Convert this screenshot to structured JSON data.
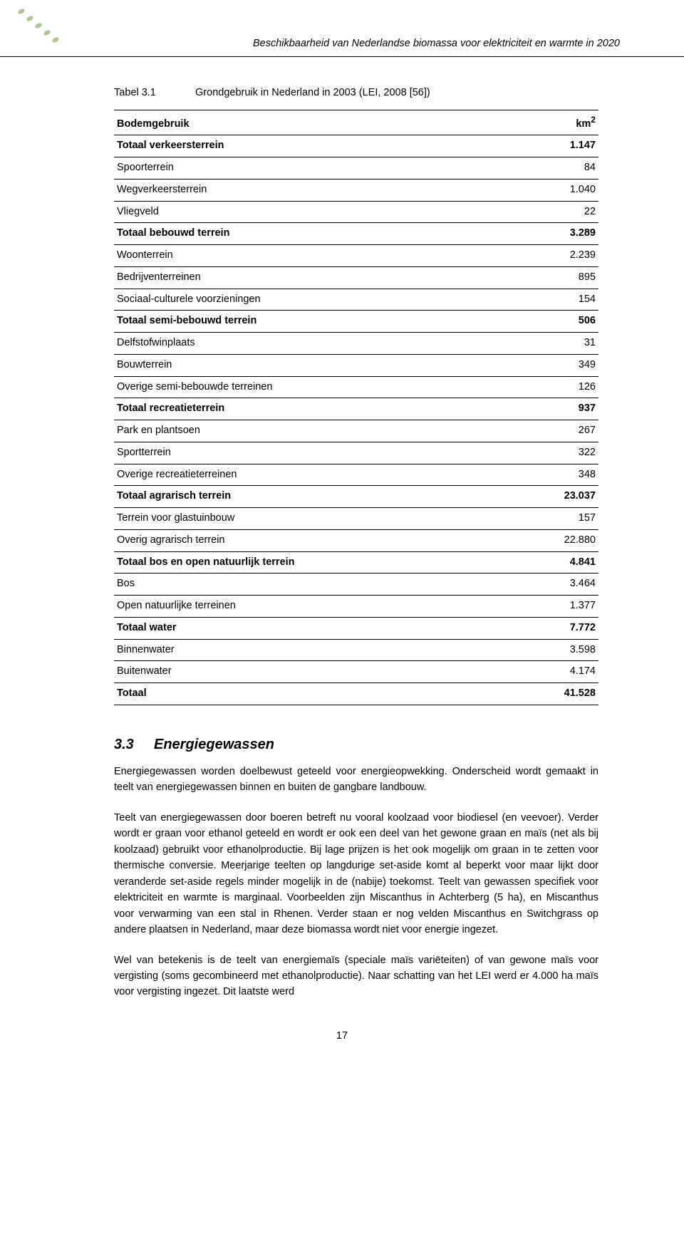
{
  "header": {
    "running_title": "Beschikbaarheid van Nederlandse biomassa voor elektriciteit en warmte in 2020",
    "deco_color": "#6a9a3a",
    "rule_color": "#000000"
  },
  "table": {
    "caption_label": "Tabel 3.1",
    "caption_text": "Grondgebruik in Nederland in 2003 (LEI, 2008 [56])",
    "header_row": {
      "label": "Bodemgebruik",
      "value": "km",
      "value_sup": "2"
    },
    "rows": [
      {
        "label": "Totaal verkeersterrein",
        "value": "1.147",
        "bold": true
      },
      {
        "label": "Spoorterrein",
        "value": "84",
        "bold": false
      },
      {
        "label": "Wegverkeersterrein",
        "value": "1.040",
        "bold": false
      },
      {
        "label": "Vliegveld",
        "value": "22",
        "bold": false
      },
      {
        "label": "Totaal bebouwd terrein",
        "value": "3.289",
        "bold": true
      },
      {
        "label": "Woonterrein",
        "value": "2.239",
        "bold": false
      },
      {
        "label": "Bedrijventerreinen",
        "value": "895",
        "bold": false
      },
      {
        "label": "Sociaal-culturele voorzieningen",
        "value": "154",
        "bold": false
      },
      {
        "label": "Totaal semi-bebouwd terrein",
        "value": "506",
        "bold": true
      },
      {
        "label": "Delfstofwinplaats",
        "value": "31",
        "bold": false
      },
      {
        "label": "Bouwterrein",
        "value": "349",
        "bold": false
      },
      {
        "label": "Overige semi-bebouwde terreinen",
        "value": "126",
        "bold": false
      },
      {
        "label": "Totaal recreatieterrein",
        "value": "937",
        "bold": true
      },
      {
        "label": "Park en plantsoen",
        "value": "267",
        "bold": false
      },
      {
        "label": "Sportterrein",
        "value": "322",
        "bold": false
      },
      {
        "label": "Overige recreatieterreinen",
        "value": "348",
        "bold": false
      },
      {
        "label": "Totaal agrarisch terrein",
        "value": "23.037",
        "bold": true
      },
      {
        "label": "Terrein voor glastuinbouw",
        "value": "157",
        "bold": false
      },
      {
        "label": "Overig agrarisch terrein",
        "value": "22.880",
        "bold": false
      },
      {
        "label": "Totaal bos en open natuurlijk terrein",
        "value": "4.841",
        "bold": true
      },
      {
        "label": "Bos",
        "value": "3.464",
        "bold": false
      },
      {
        "label": "Open natuurlijke terreinen",
        "value": "1.377",
        "bold": false
      },
      {
        "label": "Totaal water",
        "value": "7.772",
        "bold": true
      },
      {
        "label": "Binnenwater",
        "value": "3.598",
        "bold": false
      },
      {
        "label": "Buitenwater",
        "value": "4.174",
        "bold": false
      },
      {
        "label": "Totaal",
        "value": "41.528",
        "bold": true
      }
    ]
  },
  "section": {
    "number": "3.3",
    "title": "Energiegewassen",
    "paragraphs": [
      "Energiegewassen worden doelbewust geteeld voor energieopwekking. Onderscheid wordt gemaakt in teelt van energiegewassen binnen en buiten de gangbare landbouw.",
      "Teelt van energiegewassen door boeren betreft nu vooral koolzaad voor biodiesel (en veevoer). Verder wordt er graan voor ethanol geteeld en wordt er ook een deel van het gewone graan en maïs (net als bij koolzaad) gebruikt voor ethanolproductie. Bij lage prijzen is het ook mogelijk om graan in te zetten voor thermische conversie. Meerjarige teelten op langdurige set-aside komt al beperkt voor maar lijkt door veranderde set-aside regels minder mogelijk in de (nabije) toekomst. Teelt van gewassen specifiek voor elektriciteit en warmte is marginaal. Voorbeelden zijn Miscanthus in Achterberg (5 ha), en Miscanthus voor verwarming van een stal in Rhenen. Verder staan er nog velden Miscanthus en Switchgrass op andere plaatsen in Nederland, maar deze biomassa wordt niet voor energie ingezet.",
      "Wel van betekenis is de teelt van energiemaïs (speciale maïs variëteiten) of van gewone maïs voor vergisting (soms gecombineerd met ethanolproductie). Naar schatting van het LEI werd er 4.000 ha maïs voor vergisting ingezet. Dit laatste werd"
    ]
  },
  "page_number": "17"
}
